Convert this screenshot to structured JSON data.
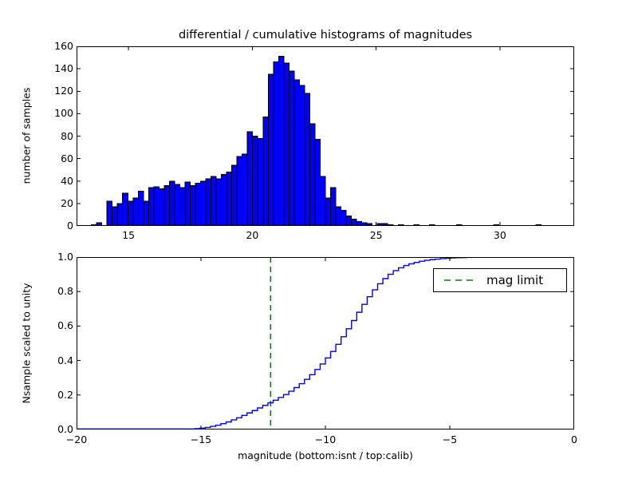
{
  "figure": {
    "title": "differential / cumulative histograms of magnitudes",
    "background": "#ffffff",
    "text_color": "#000000"
  },
  "chart_data": [
    {
      "type": "bar",
      "subplot": "top",
      "title": "differential / cumulative histograms of magnitudes",
      "ylabel": "number of samples",
      "xlabel": "",
      "xlim": [
        12.9,
        33.0
      ],
      "ylim": [
        0,
        160
      ],
      "grid": false,
      "xticks": [
        {
          "v": 15,
          "label": "15"
        },
        {
          "v": 20,
          "label": "20"
        },
        {
          "v": 25,
          "label": "25"
        },
        {
          "v": 30,
          "label": "30"
        }
      ],
      "yticks": [
        {
          "v": 0,
          "label": "0"
        },
        {
          "v": 20,
          "label": "20"
        },
        {
          "v": 40,
          "label": "40"
        },
        {
          "v": 60,
          "label": "60"
        },
        {
          "v": 80,
          "label": "80"
        },
        {
          "v": 100,
          "label": "100"
        },
        {
          "v": 120,
          "label": "120"
        },
        {
          "v": 140,
          "label": "140"
        },
        {
          "v": 160,
          "label": "160"
        }
      ],
      "bins": {
        "start": 13.5,
        "width": 0.21,
        "counts": [
          1,
          3,
          0,
          22,
          17,
          20,
          29,
          22,
          25,
          31,
          22,
          34,
          35,
          33,
          36,
          40,
          37,
          34,
          39,
          36,
          38,
          40,
          42,
          44,
          42,
          46,
          48,
          54,
          62,
          64,
          84,
          80,
          78,
          97,
          135,
          146,
          151,
          145,
          138,
          130,
          125,
          118,
          91,
          77,
          44,
          25,
          34,
          17,
          14,
          9,
          6,
          4,
          3,
          2,
          0,
          2,
          2,
          1,
          0,
          1,
          0,
          0,
          1,
          0,
          0,
          1
        ]
      },
      "extra_bars": [
        {
          "x": 28.25,
          "count": 1
        },
        {
          "x": 29.75,
          "count": 1
        },
        {
          "x": 31.45,
          "count": 1
        }
      ],
      "bar_fill": "#0000ff",
      "bar_edge": "#000000",
      "peak_count": 151,
      "peak_magnitude": 21.2
    },
    {
      "type": "line",
      "subplot": "bottom",
      "ylabel": "Nsample scaled to unity",
      "xlabel": "magnitude (bottom:isnt / top:calib)",
      "xlim": [
        -20,
        0
      ],
      "ylim": [
        0.0,
        1.0
      ],
      "grid": false,
      "xticks": [
        {
          "v": -20,
          "label": "−20"
        },
        {
          "v": -15,
          "label": "−15"
        },
        {
          "v": -10,
          "label": "−10"
        },
        {
          "v": -5,
          "label": "−5"
        },
        {
          "v": 0,
          "label": "0"
        }
      ],
      "yticks": [
        {
          "v": 0.0,
          "label": "0.0"
        },
        {
          "v": 0.2,
          "label": "0.2"
        },
        {
          "v": 0.4,
          "label": "0.4"
        },
        {
          "v": 0.6,
          "label": "0.6"
        },
        {
          "v": 0.8,
          "label": "0.8"
        },
        {
          "v": 1.0,
          "label": "1.0"
        }
      ],
      "line_color": "#0000ff",
      "line_style": "step-cumulative",
      "cdf_points": [
        [
          -15.25,
          0.005
        ],
        [
          -15.04,
          0.008
        ],
        [
          -14.83,
          0.012
        ],
        [
          -14.62,
          0.018
        ],
        [
          -14.41,
          0.025
        ],
        [
          -14.2,
          0.034
        ],
        [
          -13.99,
          0.044
        ],
        [
          -13.78,
          0.056
        ],
        [
          -13.57,
          0.068
        ],
        [
          -13.36,
          0.082
        ],
        [
          -13.15,
          0.096
        ],
        [
          -12.94,
          0.11
        ],
        [
          -12.73,
          0.125
        ],
        [
          -12.52,
          0.14
        ],
        [
          -12.31,
          0.155
        ],
        [
          -12.1,
          0.17
        ],
        [
          -11.89,
          0.186
        ],
        [
          -11.68,
          0.203
        ],
        [
          -11.47,
          0.222
        ],
        [
          -11.26,
          0.243
        ],
        [
          -11.05,
          0.266
        ],
        [
          -10.84,
          0.291
        ],
        [
          -10.63,
          0.318
        ],
        [
          -10.42,
          0.348
        ],
        [
          -10.21,
          0.38
        ],
        [
          -10.0,
          0.415
        ],
        [
          -9.79,
          0.453
        ],
        [
          -9.58,
          0.494
        ],
        [
          -9.37,
          0.538
        ],
        [
          -9.16,
          0.584
        ],
        [
          -8.95,
          0.632
        ],
        [
          -8.74,
          0.68
        ],
        [
          -8.53,
          0.726
        ],
        [
          -8.32,
          0.77
        ],
        [
          -8.11,
          0.81
        ],
        [
          -7.9,
          0.845
        ],
        [
          -7.69,
          0.875
        ],
        [
          -7.48,
          0.9
        ],
        [
          -7.27,
          0.921
        ],
        [
          -7.06,
          0.938
        ],
        [
          -6.85,
          0.951
        ],
        [
          -6.64,
          0.961
        ],
        [
          -6.43,
          0.969
        ],
        [
          -6.22,
          0.976
        ],
        [
          -6.01,
          0.981
        ],
        [
          -5.8,
          0.985
        ],
        [
          -5.59,
          0.988
        ],
        [
          -5.38,
          0.991
        ],
        [
          -5.17,
          0.993
        ],
        [
          -4.96,
          0.995
        ],
        [
          -4.75,
          0.996
        ],
        [
          -4.54,
          0.997
        ],
        [
          -4.33,
          0.998
        ],
        [
          -4.12,
          0.9985
        ],
        [
          -3.91,
          0.999
        ],
        [
          -3.7,
          0.9993
        ],
        [
          -3.49,
          0.9996
        ],
        [
          -3.28,
          0.9998
        ],
        [
          -3.07,
          1.0
        ]
      ],
      "mag_limit": {
        "x": -12.2,
        "color": "#008000",
        "style": "dashed"
      },
      "legend": {
        "label": "mag limit",
        "position": "upper right",
        "line_color": "#008000"
      }
    }
  ]
}
